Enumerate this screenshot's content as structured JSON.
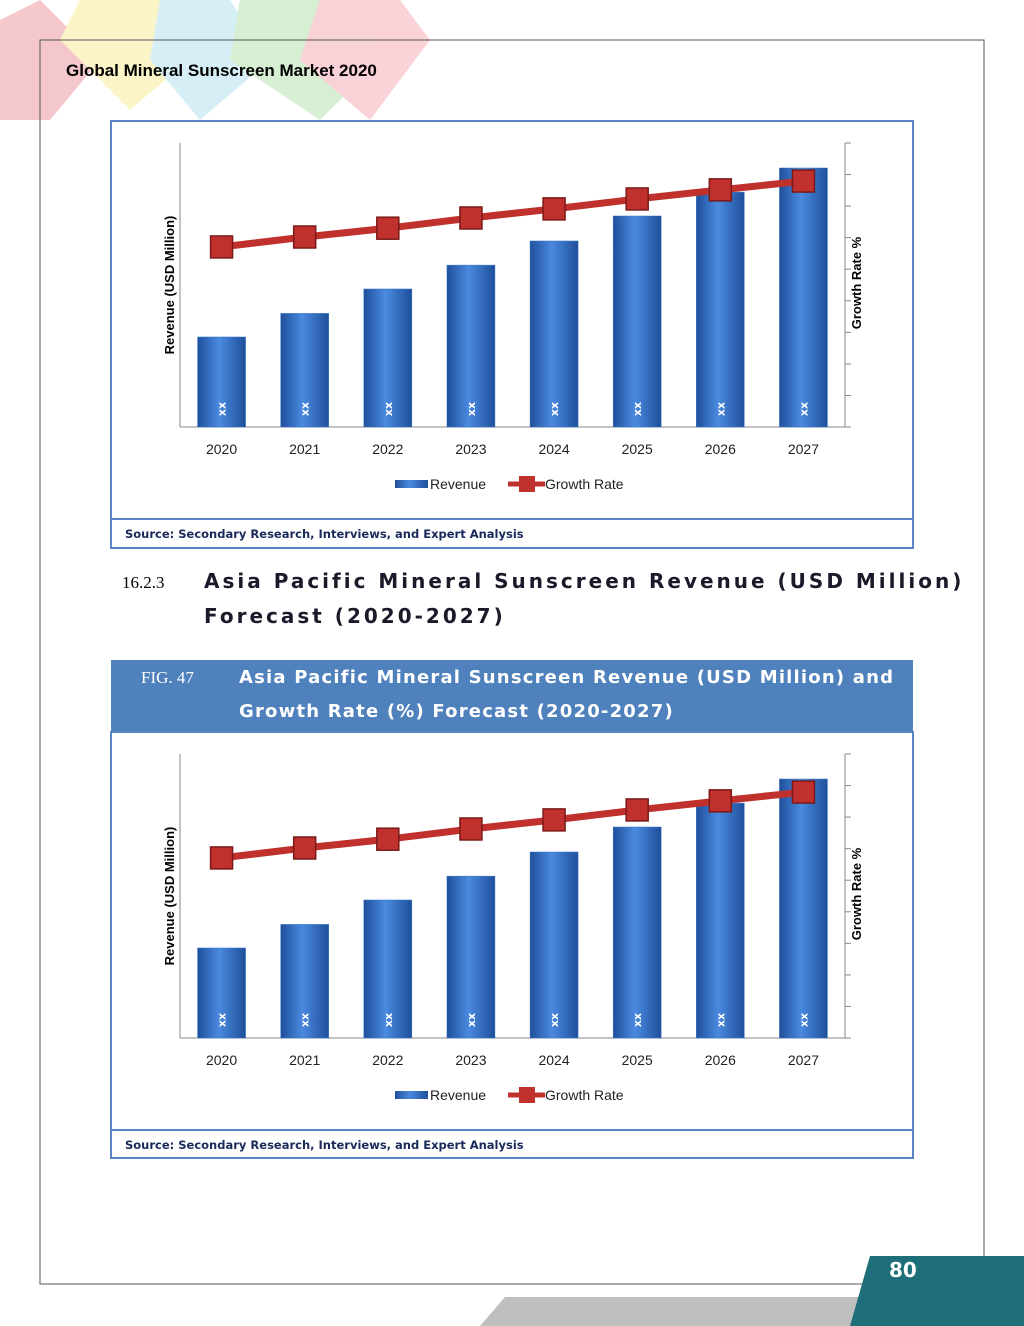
{
  "header": {
    "title": "Global Mineral Sunscreen Market 2020"
  },
  "section": {
    "number": "16.2.3",
    "title_line1": "Asia Pacific Mineral Sunscreen Revenue (USD Million)",
    "title_line2": "Forecast (2020-2027)"
  },
  "figure": {
    "label": "FIG. 47",
    "caption_line1": "Asia Pacific Mineral Sunscreen Revenue (USD Million) and",
    "caption_line2": "Growth Rate (%) Forecast (2020-2027)"
  },
  "page_number": "80",
  "chart_data": [
    {
      "type": "combo",
      "y_label": "Revenue (USD Million)",
      "y2_label": "Growth Rate %",
      "categories": [
        "2020",
        "2021",
        "2022",
        "2023",
        "2024",
        "2025",
        "2026",
        "2027"
      ],
      "ylim": [
        0,
        100
      ],
      "y2lim": [
        0,
        100
      ],
      "series": [
        {
          "name": "Revenue",
          "type": "bar",
          "color": "#3a78c9",
          "values": [
            31.7,
            40,
            48.6,
            57,
            65.5,
            74.3,
            82.7,
            91.2
          ],
          "value_labels": [
            "xx",
            "xx",
            "xx",
            "xx",
            "xx",
            "xx",
            "xx",
            "xx"
          ]
        },
        {
          "name": "Growth Rate",
          "type": "line",
          "axis": "y2",
          "color": "#c0302c",
          "values": [
            63.4,
            66.9,
            70,
            73.6,
            76.8,
            80.3,
            83.5,
            86.6
          ]
        }
      ],
      "source": "Source: Secondary Research, Interviews, and Expert Analysis"
    },
    {
      "type": "combo",
      "y_label": "Revenue (USD Million)",
      "y2_label": "Growth Rate %",
      "categories": [
        "2020",
        "2021",
        "2022",
        "2023",
        "2024",
        "2025",
        "2026",
        "2027"
      ],
      "ylim": [
        0,
        100
      ],
      "y2lim": [
        0,
        100
      ],
      "series": [
        {
          "name": "Revenue",
          "type": "bar",
          "color": "#3a78c9",
          "values": [
            31.7,
            40,
            48.6,
            57,
            65.5,
            74.3,
            82.7,
            91.2
          ],
          "value_labels": [
            "xx",
            "xx",
            "xx",
            "xx",
            "xx",
            "xx",
            "xx",
            "xx"
          ]
        },
        {
          "name": "Growth Rate",
          "type": "line",
          "axis": "y2",
          "color": "#c0302c",
          "values": [
            63.4,
            66.9,
            70,
            73.6,
            76.8,
            80.3,
            83.5,
            86.6
          ]
        }
      ],
      "source": "Source: Secondary Research, Interviews, and Expert Analysis"
    }
  ]
}
